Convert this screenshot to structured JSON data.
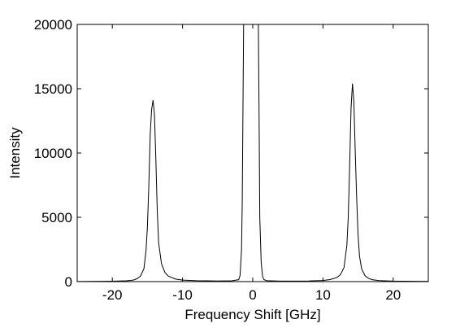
{
  "chart_data": {
    "type": "line",
    "title": "",
    "xlabel": "Frequency Shift [GHz]",
    "ylabel": "Intensity",
    "xlim": [
      -25,
      25
    ],
    "ylim": [
      0,
      20000
    ],
    "x_ticks": [
      -20,
      -10,
      0,
      10,
      20
    ],
    "y_ticks": [
      0,
      5000,
      10000,
      15000,
      20000
    ],
    "x_tick_labels": [
      "-20",
      "-10",
      "0",
      "10",
      "20"
    ],
    "y_tick_labels": [
      "0",
      "5000",
      "10000",
      "15000",
      "20000"
    ],
    "grid": false,
    "legend": "none",
    "line_color": "#000000",
    "series": [
      {
        "values_description_free": true,
        "points": [
          [
            -25,
            10
          ],
          [
            -20,
            30
          ],
          [
            -18,
            60
          ],
          [
            -17,
            120
          ],
          [
            -16.5,
            220
          ],
          [
            -16,
            420
          ],
          [
            -15.5,
            1000
          ],
          [
            -15.2,
            2400
          ],
          [
            -15,
            4300
          ],
          [
            -14.8,
            7500
          ],
          [
            -14.6,
            11500
          ],
          [
            -14.4,
            13400
          ],
          [
            -14.2,
            14100
          ],
          [
            -14.0,
            13000
          ],
          [
            -13.8,
            9500
          ],
          [
            -13.6,
            5500
          ],
          [
            -13.4,
            3000
          ],
          [
            -13.0,
            1400
          ],
          [
            -12.5,
            700
          ],
          [
            -12,
            420
          ],
          [
            -11,
            200
          ],
          [
            -10,
            120
          ],
          [
            -8,
            70
          ],
          [
            -5,
            50
          ],
          [
            -3,
            60
          ],
          [
            -2,
            150
          ],
          [
            -1.8,
            500
          ],
          [
            -1.6,
            2500
          ],
          [
            -1.5,
            6000
          ],
          [
            -1.4,
            13000
          ],
          [
            -1.3,
            20000
          ],
          [
            0.8,
            20000
          ],
          [
            0.9,
            13000
          ],
          [
            1.0,
            5000
          ],
          [
            1.2,
            1500
          ],
          [
            1.4,
            400
          ],
          [
            1.6,
            150
          ],
          [
            2,
            70
          ],
          [
            4,
            40
          ],
          [
            8,
            50
          ],
          [
            10,
            90
          ],
          [
            11,
            160
          ],
          [
            12,
            320
          ],
          [
            12.5,
            550
          ],
          [
            13,
            1100
          ],
          [
            13.4,
            2800
          ],
          [
            13.6,
            5000
          ],
          [
            13.8,
            9000
          ],
          [
            14.0,
            13500
          ],
          [
            14.2,
            15400
          ],
          [
            14.4,
            14000
          ],
          [
            14.6,
            10000
          ],
          [
            14.8,
            6500
          ],
          [
            15.0,
            3600
          ],
          [
            15.2,
            2000
          ],
          [
            15.5,
            1000
          ],
          [
            16,
            450
          ],
          [
            16.5,
            250
          ],
          [
            17,
            150
          ],
          [
            18,
            80
          ],
          [
            20,
            40
          ],
          [
            25,
            15
          ]
        ]
      }
    ]
  }
}
